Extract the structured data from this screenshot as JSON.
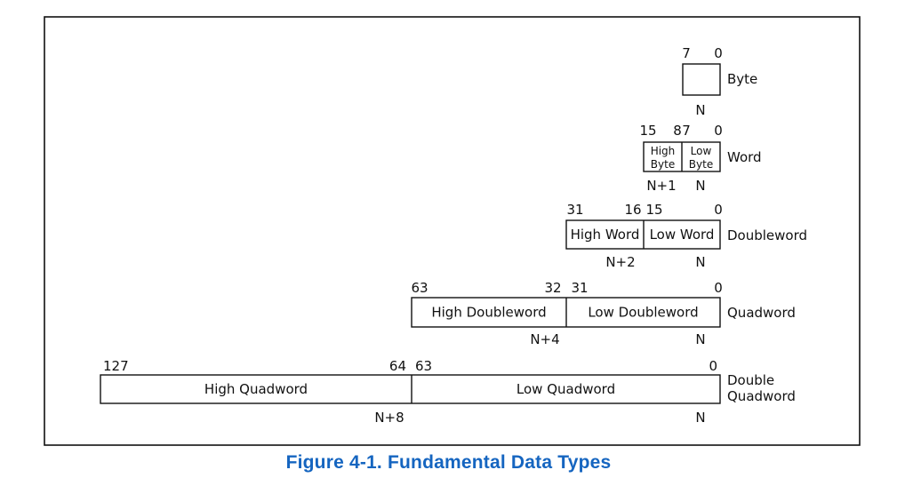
{
  "caption": "Figure 4-1.  Fundamental Data Types",
  "caption_color": "#1565c0",
  "rows": [
    {
      "type_label": [
        "Byte"
      ],
      "bits": [
        "7",
        "0"
      ],
      "cells": [
        {
          "lines": [
            ""
          ]
        }
      ],
      "addresses": [
        "N"
      ]
    },
    {
      "type_label": [
        "Word"
      ],
      "bits": [
        "15",
        "8",
        "7",
        "0"
      ],
      "cells": [
        {
          "lines": [
            "High",
            "Byte"
          ]
        },
        {
          "lines": [
            "Low",
            "Byte"
          ]
        }
      ],
      "addresses": [
        "N+1",
        "N"
      ]
    },
    {
      "type_label": [
        "Doubleword"
      ],
      "bits": [
        "31",
        "16",
        "15",
        "0"
      ],
      "cells": [
        {
          "lines": [
            "High Word"
          ]
        },
        {
          "lines": [
            "Low Word"
          ]
        }
      ],
      "addresses": [
        "N+2",
        "N"
      ]
    },
    {
      "type_label": [
        "Quadword"
      ],
      "bits": [
        "63",
        "32",
        "31",
        "0"
      ],
      "cells": [
        {
          "lines": [
            "High Doubleword"
          ]
        },
        {
          "lines": [
            "Low Doubleword"
          ]
        }
      ],
      "addresses": [
        "N+4",
        "N"
      ]
    },
    {
      "type_label": [
        "Double",
        "Quadword"
      ],
      "bits": [
        "127",
        "64",
        "63",
        "0"
      ],
      "cells": [
        {
          "lines": [
            "High Quadword"
          ]
        },
        {
          "lines": [
            "Low Quadword"
          ]
        }
      ],
      "addresses": [
        "N+8",
        "N"
      ]
    }
  ]
}
